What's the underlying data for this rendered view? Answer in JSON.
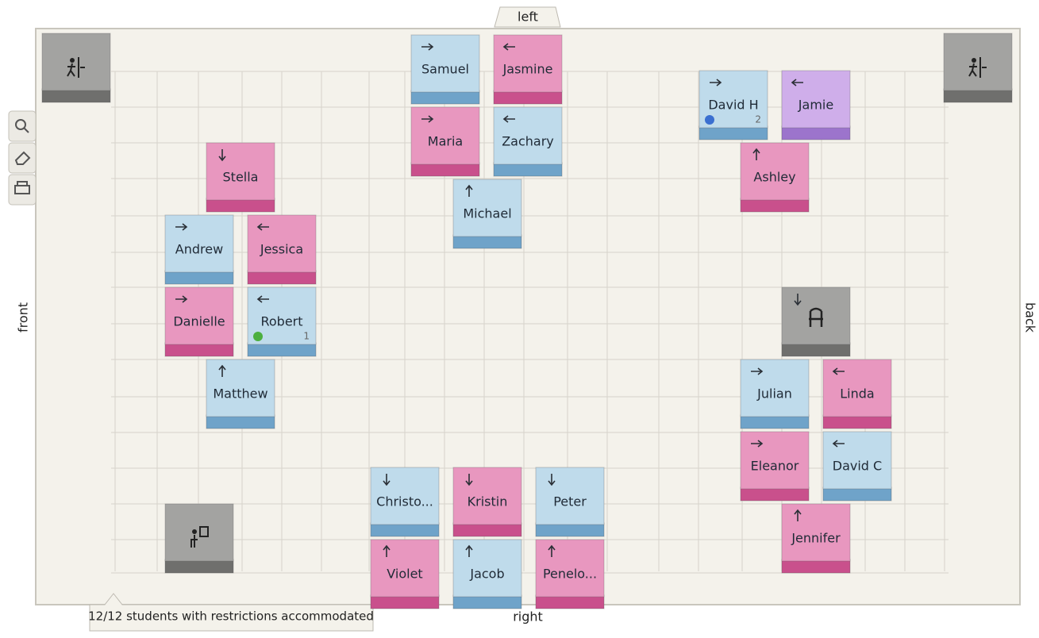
{
  "room": {
    "top_label": "left",
    "bottom_label": "right",
    "left_label": "front",
    "right_label": "back"
  },
  "status": "12/12 students with restrictions accommodated",
  "desks": [
    {
      "name": "Samuel",
      "facing": "right",
      "color": "blue"
    },
    {
      "name": "Jasmine",
      "facing": "left",
      "color": "pink"
    },
    {
      "name": "Maria",
      "facing": "right",
      "color": "pink"
    },
    {
      "name": "Zachary",
      "facing": "left",
      "color": "blue"
    },
    {
      "name": "Michael",
      "facing": "up",
      "color": "blue"
    },
    {
      "name": "David H",
      "facing": "right",
      "color": "blue",
      "badge": 2,
      "dot": "blue"
    },
    {
      "name": "Jamie",
      "facing": "left",
      "color": "purple"
    },
    {
      "name": "Ashley",
      "facing": "up",
      "color": "pink"
    },
    {
      "name": "Stella",
      "facing": "down",
      "color": "pink"
    },
    {
      "name": "Andrew",
      "facing": "right",
      "color": "blue"
    },
    {
      "name": "Jessica",
      "facing": "left",
      "color": "pink"
    },
    {
      "name": "Danielle",
      "facing": "right",
      "color": "pink"
    },
    {
      "name": "Robert",
      "facing": "left",
      "color": "blue",
      "badge": 1,
      "dot": "green"
    },
    {
      "name": "Matthew",
      "facing": "up",
      "color": "blue"
    },
    {
      "name": "Julian",
      "facing": "right",
      "color": "blue"
    },
    {
      "name": "Linda",
      "facing": "left",
      "color": "pink"
    },
    {
      "name": "Eleanor",
      "facing": "right",
      "color": "pink"
    },
    {
      "name": "David C",
      "facing": "left",
      "color": "blue"
    },
    {
      "name": "Jennifer",
      "facing": "up",
      "color": "pink"
    },
    {
      "name": "Christo...",
      "facing": "down",
      "color": "blue"
    },
    {
      "name": "Kristin",
      "facing": "down",
      "color": "pink"
    },
    {
      "name": "Peter",
      "facing": "down",
      "color": "blue"
    },
    {
      "name": "Violet",
      "facing": "up",
      "color": "pink"
    },
    {
      "name": "Jacob",
      "facing": "up",
      "color": "blue"
    },
    {
      "name": "Penelo...",
      "facing": "up",
      "color": "pink"
    }
  ]
}
